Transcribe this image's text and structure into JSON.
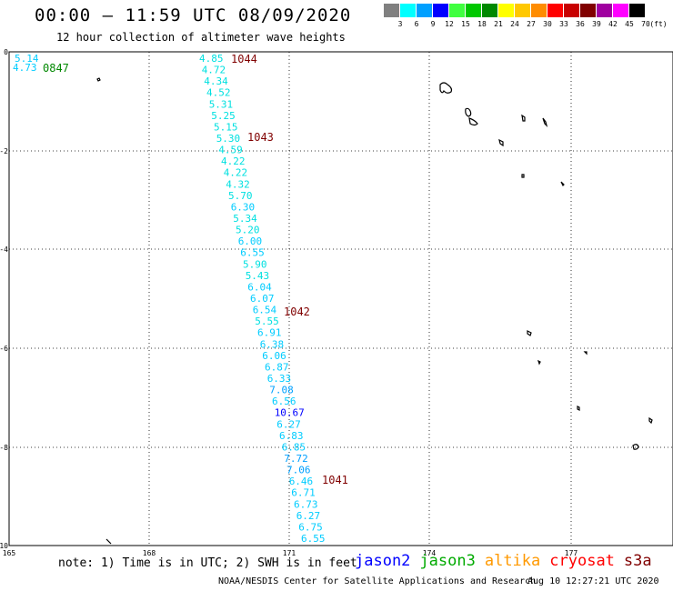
{
  "header": {
    "title": "00:00 – 11:59 UTC 08/09/2020",
    "subtitle": "12 hour collection of altimeter wave heights"
  },
  "colorbar": {
    "bins": [
      {
        "label": "3",
        "color": "#808080"
      },
      {
        "label": "6",
        "color": "#00ffff"
      },
      {
        "label": "9",
        "color": "#00a0ff"
      },
      {
        "label": "12",
        "color": "#0000ff"
      },
      {
        "label": "15",
        "color": "#40ff40"
      },
      {
        "label": "18",
        "color": "#00c800"
      },
      {
        "label": "21",
        "color": "#008800"
      },
      {
        "label": "24",
        "color": "#ffff00"
      },
      {
        "label": "27",
        "color": "#ffc800"
      },
      {
        "label": "30",
        "color": "#ff8c00"
      },
      {
        "label": "33",
        "color": "#ff0000"
      },
      {
        "label": "36",
        "color": "#c80000"
      },
      {
        "label": "39",
        "color": "#800000"
      },
      {
        "label": "42",
        "color": "#a000a0"
      },
      {
        "label": "45",
        "color": "#ff00ff"
      },
      {
        "label": "70",
        "color": "#000000"
      }
    ],
    "unit_label": "(ft)"
  },
  "map": {
    "lon_labels": [
      "165",
      "168",
      "171",
      "174",
      "177"
    ],
    "lat_labels": [
      "0",
      "-2",
      "-4",
      "-6",
      "-8",
      "-10"
    ],
    "time_markers": [
      {
        "label": "0847",
        "color": "#008800"
      },
      {
        "label": "1044",
        "color": "#800000"
      },
      {
        "label": "1043",
        "color": "#800000"
      },
      {
        "label": "1042",
        "color": "#800000"
      },
      {
        "label": "1041",
        "color": "#800000"
      }
    ],
    "track_a": [
      {
        "v": "5.14",
        "color": "#00ccff"
      },
      {
        "v": "4.73",
        "color": "#00ccff"
      }
    ],
    "track_b": [
      {
        "v": "4.85",
        "color": "#00e0e0"
      },
      {
        "v": "4.72",
        "color": "#00e0e0"
      },
      {
        "v": "4.34",
        "color": "#00e0e0"
      },
      {
        "v": "4.52",
        "color": "#00e0e0"
      },
      {
        "v": "5.31",
        "color": "#00e0e0"
      },
      {
        "v": "5.25",
        "color": "#00e0e0"
      },
      {
        "v": "5.15",
        "color": "#00e0e0"
      },
      {
        "v": "5.30",
        "color": "#00e0e0"
      },
      {
        "v": "4.59",
        "color": "#00e0e0"
      },
      {
        "v": "4.22",
        "color": "#00e0e0"
      },
      {
        "v": "4.22",
        "color": "#00e0e0"
      },
      {
        "v": "4.32",
        "color": "#00e0e0"
      },
      {
        "v": "5.70",
        "color": "#00e0e0"
      },
      {
        "v": "6.30",
        "color": "#00ccff"
      },
      {
        "v": "5.34",
        "color": "#00e0e0"
      },
      {
        "v": "5.20",
        "color": "#00e0e0"
      },
      {
        "v": "6.00",
        "color": "#00ccff"
      },
      {
        "v": "6.55",
        "color": "#00ccff"
      },
      {
        "v": "5.90",
        "color": "#00e0e0"
      },
      {
        "v": "5.43",
        "color": "#00e0e0"
      },
      {
        "v": "6.04",
        "color": "#00ccff"
      },
      {
        "v": "6.07",
        "color": "#00ccff"
      },
      {
        "v": "6.54",
        "color": "#00ccff"
      },
      {
        "v": "5.55",
        "color": "#00e0e0"
      },
      {
        "v": "6.91",
        "color": "#00ccff"
      },
      {
        "v": "6.38",
        "color": "#00ccff"
      },
      {
        "v": "6.06",
        "color": "#00ccff"
      },
      {
        "v": "6.87",
        "color": "#00ccff"
      },
      {
        "v": "6.33",
        "color": "#00ccff"
      },
      {
        "v": "7.08",
        "color": "#00a0ff"
      },
      {
        "v": "6.56",
        "color": "#00ccff"
      },
      {
        "v": "10.67",
        "color": "#0000ff"
      },
      {
        "v": "6.27",
        "color": "#00ccff"
      },
      {
        "v": "6.83",
        "color": "#00ccff"
      },
      {
        "v": "6.85",
        "color": "#00ccff"
      },
      {
        "v": "7.72",
        "color": "#00a0ff"
      },
      {
        "v": "7.06",
        "color": "#00a0ff"
      },
      {
        "v": "6.46",
        "color": "#00ccff"
      },
      {
        "v": "6.71",
        "color": "#00ccff"
      },
      {
        "v": "6.73",
        "color": "#00ccff"
      },
      {
        "v": "6.27",
        "color": "#00ccff"
      },
      {
        "v": "6.75",
        "color": "#00ccff"
      },
      {
        "v": "6.55",
        "color": "#00ccff"
      }
    ]
  },
  "footer": {
    "note": "note: 1) Time is in UTC; 2) SWH is in feet",
    "satellites": [
      {
        "name": "jason2",
        "color": "#0000ff"
      },
      {
        "name": "jason3",
        "color": "#00aa00"
      },
      {
        "name": "altika",
        "color": "#ff9900"
      },
      {
        "name": "cryosat",
        "color": "#ff0000"
      },
      {
        "name": "s3a",
        "color": "#800000"
      }
    ],
    "credit": "NOAA/NESDIS Center for Satellite Applications and Research",
    "timestamp": "Aug 10 12:27:21 UTC 2020"
  }
}
